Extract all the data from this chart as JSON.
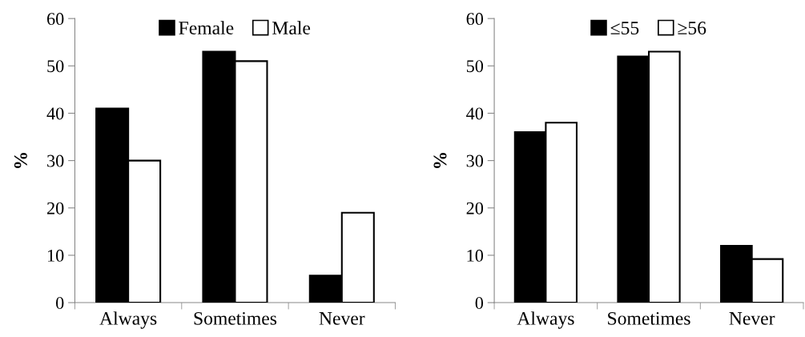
{
  "chart_data": [
    {
      "type": "bar",
      "ylabel": "%",
      "categories": [
        "Always",
        "Sometimes",
        "Never"
      ],
      "series": [
        {
          "name": "Female",
          "color": "#000000",
          "values": [
            41,
            53,
            5.7
          ]
        },
        {
          "name": "Male",
          "color": "#ffffff",
          "values": [
            30,
            51,
            19
          ]
        }
      ],
      "ylim": [
        0,
        60
      ],
      "yticks": [
        0,
        10,
        20,
        30,
        40,
        50,
        60
      ],
      "grid": false,
      "legend": "top"
    },
    {
      "type": "bar",
      "ylabel": "%",
      "categories": [
        "Always",
        "Sometimes",
        "Never"
      ],
      "series": [
        {
          "name": "≤55",
          "color": "#000000",
          "values": [
            36,
            52,
            12
          ]
        },
        {
          "name": "≥56",
          "color": "#ffffff",
          "values": [
            38,
            53,
            9.2
          ]
        }
      ],
      "ylim": [
        0,
        60
      ],
      "yticks": [
        0,
        10,
        20,
        30,
        40,
        50,
        60
      ],
      "grid": false,
      "legend": "top"
    }
  ]
}
